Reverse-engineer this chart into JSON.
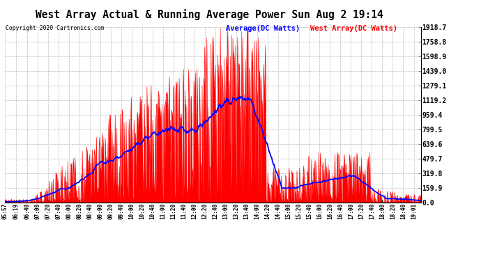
{
  "title": "West Array Actual & Running Average Power Sun Aug 2 19:14",
  "copyright": "Copyright 2020 Cartronics.com",
  "legend_avg": "Average(DC Watts)",
  "legend_west": "West Array(DC Watts)",
  "ylabel_values": [
    1918.7,
    1758.8,
    1598.9,
    1439.0,
    1279.1,
    1119.2,
    959.4,
    799.5,
    639.6,
    479.7,
    319.8,
    159.9,
    0.0
  ],
  "ymax": 1918.7,
  "ymin": 0.0,
  "bg_color": "#ffffff",
  "plot_bg_color": "#ffffff",
  "grid_color": "#aaaaaa",
  "fill_color": "#ff0000",
  "avg_line_color": "#0000ff",
  "west_line_color": "#ff0000",
  "title_color": "#000000",
  "copyright_color": "#000000",
  "legend_avg_color": "#0000ff",
  "legend_west_color": "#ff0000",
  "x_tick_labels": [
    "05:57",
    "06:19",
    "06:40",
    "07:00",
    "07:20",
    "07:40",
    "08:00",
    "08:20",
    "08:40",
    "09:00",
    "09:20",
    "09:40",
    "10:00",
    "10:20",
    "10:40",
    "11:00",
    "11:20",
    "11:40",
    "12:00",
    "12:20",
    "12:40",
    "13:00",
    "13:20",
    "13:40",
    "14:00",
    "14:20",
    "14:40",
    "15:00",
    "15:20",
    "15:40",
    "16:00",
    "16:20",
    "16:40",
    "17:00",
    "17:20",
    "17:40",
    "18:00",
    "18:20",
    "18:40",
    "19:01"
  ]
}
